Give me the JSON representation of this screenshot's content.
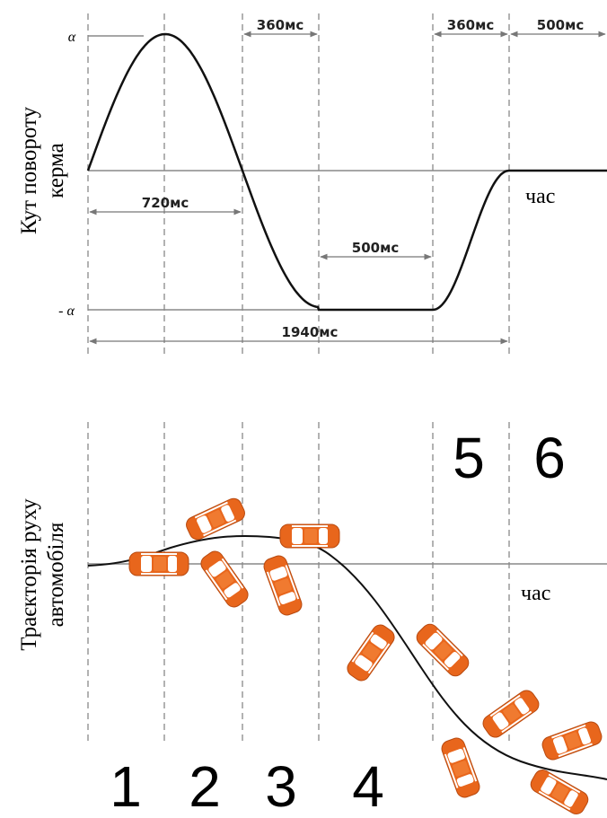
{
  "angle_chart": {
    "y_label": [
      "Кут повороту",
      "керма"
    ],
    "alpha": "α",
    "minus_alpha": "- α",
    "time_label": "час",
    "durations": [
      "360мс",
      "360мс",
      "500мс",
      "720мс",
      "500мс",
      "1940мс"
    ]
  },
  "trajectory": {
    "y_label": [
      "Траєкторія руху",
      "автомобіля"
    ],
    "time_label": "час",
    "phases": [
      "1",
      "2",
      "3",
      "4",
      "5",
      "6"
    ]
  }
}
